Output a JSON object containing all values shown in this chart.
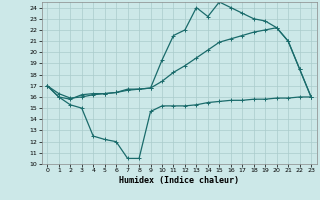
{
  "xlabel": "Humidex (Indice chaleur)",
  "xlim": [
    -0.5,
    23.5
  ],
  "ylim": [
    10,
    24.5
  ],
  "xticks": [
    0,
    1,
    2,
    3,
    4,
    5,
    6,
    7,
    8,
    9,
    10,
    11,
    12,
    13,
    14,
    15,
    16,
    17,
    18,
    19,
    20,
    21,
    22,
    23
  ],
  "yticks": [
    10,
    11,
    12,
    13,
    14,
    15,
    16,
    17,
    18,
    19,
    20,
    21,
    22,
    23,
    24
  ],
  "bg_color": "#cce8e8",
  "grid_color": "#aacccc",
  "line_color": "#1a6b6b",
  "line1_x": [
    0,
    1,
    2,
    3,
    4,
    5,
    6,
    7,
    8,
    9,
    10,
    11,
    12,
    13,
    14,
    15,
    16,
    17,
    18,
    19,
    20,
    21,
    22,
    23
  ],
  "line1_y": [
    17.0,
    16.0,
    15.3,
    15.0,
    12.5,
    12.2,
    12.0,
    10.5,
    10.5,
    14.7,
    15.2,
    15.2,
    15.2,
    15.3,
    15.5,
    15.6,
    15.7,
    15.7,
    15.8,
    15.8,
    15.9,
    15.9,
    16.0,
    16.0
  ],
  "line2_x": [
    0,
    1,
    2,
    3,
    4,
    5,
    6,
    7,
    8,
    9,
    10,
    11,
    12,
    13,
    14,
    15,
    16,
    17,
    18,
    19,
    20,
    21,
    22,
    23
  ],
  "line2_y": [
    17.0,
    16.0,
    15.8,
    16.2,
    16.3,
    16.3,
    16.4,
    16.7,
    16.7,
    16.8,
    19.3,
    21.5,
    22.0,
    24.0,
    23.2,
    24.5,
    24.0,
    23.5,
    23.0,
    22.8,
    22.2,
    21.0,
    18.5,
    16.0
  ],
  "line3_x": [
    0,
    1,
    2,
    3,
    4,
    5,
    6,
    7,
    8,
    9,
    10,
    11,
    12,
    13,
    14,
    15,
    16,
    17,
    18,
    19,
    20,
    21,
    22,
    23
  ],
  "line3_y": [
    17.0,
    16.3,
    15.9,
    16.0,
    16.2,
    16.3,
    16.4,
    16.6,
    16.7,
    16.8,
    17.4,
    18.2,
    18.8,
    19.5,
    20.2,
    20.9,
    21.2,
    21.5,
    21.8,
    22.0,
    22.2,
    21.0,
    18.5,
    16.0
  ]
}
